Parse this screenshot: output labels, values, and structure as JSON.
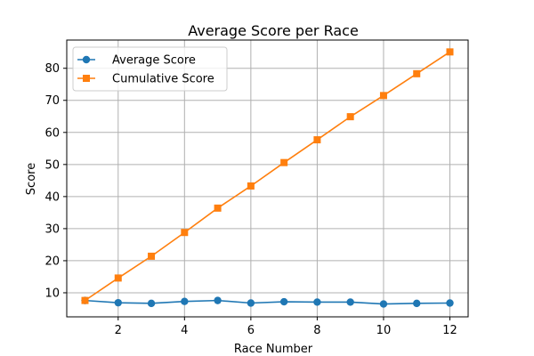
{
  "chart_data": {
    "type": "line",
    "title": "Average Score per Race",
    "xlabel": "Race Number",
    "ylabel": "Score",
    "x": [
      1,
      2,
      3,
      4,
      5,
      6,
      7,
      8,
      9,
      10,
      11,
      12
    ],
    "xlim": [
      0.45,
      12.55
    ],
    "ylim": [
      2.5,
      88.8
    ],
    "xticks": [
      2,
      4,
      6,
      8,
      10,
      12
    ],
    "yticks": [
      10,
      20,
      30,
      40,
      50,
      60,
      70,
      80
    ],
    "grid": true,
    "legend_position": "upper-left",
    "series": [
      {
        "name": "Average Score",
        "color": "#1f77b4",
        "marker": "circle",
        "values": [
          7.6,
          6.9,
          6.7,
          7.3,
          7.6,
          6.8,
          7.2,
          7.1,
          7.1,
          6.5,
          6.7,
          6.8
        ]
      },
      {
        "name": "Cumulative Score",
        "color": "#ff7f0e",
        "marker": "square",
        "values": [
          7.6,
          14.6,
          21.4,
          28.8,
          36.4,
          43.3,
          50.6,
          57.7,
          64.9,
          71.5,
          78.3,
          85.1
        ]
      }
    ]
  }
}
